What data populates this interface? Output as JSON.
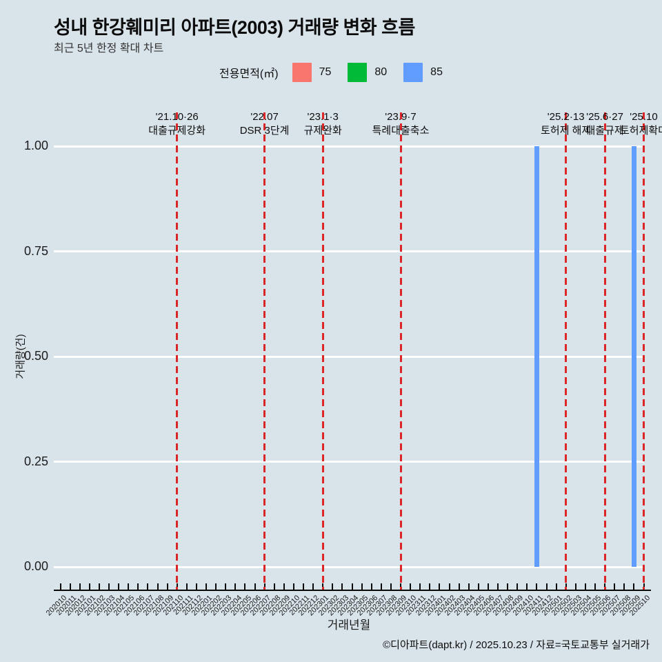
{
  "title": "성내 한강훼미리 아파트(2003) 거래량 변화 흐름",
  "subtitle": "최근 5년 한정 확대 차트",
  "legend": {
    "label": "전용면적(㎡)",
    "items": [
      {
        "label": "75",
        "color": "#F8766D"
      },
      {
        "label": "80",
        "color": "#00BA38"
      },
      {
        "label": "85",
        "color": "#619CFF"
      }
    ]
  },
  "footer": "©디아파트(dapt.kr) / 2025.10.23 / 자료=국토교통부 실거래가",
  "colors": {
    "background": "#d9e3ea",
    "gridline": "#ffffff",
    "event_line": "#dc2626",
    "axis": "#0a0a0a"
  },
  "chart_data": {
    "type": "bar",
    "title": "성내 한강훼미리 아파트(2003) 거래량 변화 흐름",
    "subtitle": "최근 5년 한정 확대 차트",
    "xlabel": "거래년월",
    "ylabel": "거래량(건)",
    "ylim": [
      0.0,
      1.0
    ],
    "grid": true,
    "legend_position": "top",
    "yticks": [
      {
        "label": "1.00",
        "value": 1.0
      },
      {
        "label": "0.75",
        "value": 0.75
      },
      {
        "label": "0.50",
        "value": 0.5
      },
      {
        "label": "0.25",
        "value": 0.25
      },
      {
        "label": "0.00",
        "value": 0.0
      }
    ],
    "categories": [
      "202010",
      "202011",
      "202012",
      "202101",
      "202102",
      "202103",
      "202104",
      "202105",
      "202106",
      "202107",
      "202108",
      "202109",
      "202110",
      "202111",
      "202112",
      "202201",
      "202202",
      "202203",
      "202204",
      "202205",
      "202206",
      "202207",
      "202208",
      "202209",
      "202210",
      "202211",
      "202212",
      "202301",
      "202302",
      "202303",
      "202304",
      "202305",
      "202306",
      "202307",
      "202308",
      "202309",
      "202310",
      "202311",
      "202312",
      "202401",
      "202402",
      "202403",
      "202404",
      "202405",
      "202406",
      "202407",
      "202408",
      "202409",
      "202410",
      "202411",
      "202412",
      "202501",
      "202502",
      "202503",
      "202504",
      "202505",
      "202506",
      "202507",
      "202508",
      "202509",
      "202510"
    ],
    "series": [
      {
        "name": "75",
        "color": "#F8766D",
        "values": [
          0,
          0,
          0,
          0,
          0,
          0,
          0,
          0,
          0,
          0,
          0,
          0,
          0,
          0,
          0,
          0,
          0,
          0,
          0,
          0,
          0,
          0,
          0,
          0,
          0,
          0,
          0,
          0,
          0,
          0,
          0,
          0,
          0,
          0,
          0,
          0,
          0,
          0,
          0,
          0,
          0,
          0,
          0,
          0,
          0,
          0,
          0,
          0,
          0,
          0,
          0,
          0,
          0,
          0,
          0,
          0,
          0,
          0,
          0,
          0,
          0
        ]
      },
      {
        "name": "80",
        "color": "#00BA38",
        "values": [
          0,
          0,
          0,
          0,
          0,
          0,
          0,
          0,
          0,
          0,
          0,
          0,
          0,
          0,
          0,
          0,
          0,
          0,
          0,
          0,
          0,
          0,
          0,
          0,
          0,
          0,
          0,
          0,
          0,
          0,
          0,
          0,
          0,
          0,
          0,
          0,
          0,
          0,
          0,
          0,
          0,
          0,
          0,
          0,
          0,
          0,
          0,
          0,
          0,
          0,
          0,
          0,
          0,
          0,
          0,
          0,
          0,
          0,
          0,
          0,
          0
        ]
      },
      {
        "name": "85",
        "color": "#619CFF",
        "values": [
          0,
          0,
          0,
          0,
          0,
          0,
          0,
          0,
          0,
          0,
          0,
          0,
          0,
          0,
          0,
          0,
          0,
          0,
          0,
          0,
          0,
          0,
          0,
          0,
          0,
          0,
          0,
          0,
          0,
          0,
          0,
          0,
          0,
          0,
          0,
          0,
          0,
          0,
          0,
          0,
          0,
          0,
          0,
          0,
          0,
          0,
          0,
          0,
          0,
          1,
          0,
          0,
          0,
          0,
          0,
          0,
          0,
          0,
          0,
          1,
          0
        ]
      }
    ],
    "annotations": [
      {
        "date": "'21.10·26",
        "label": "대출규제강화",
        "month": "202110"
      },
      {
        "date": "'22.07",
        "label": "DSR 3단계",
        "month": "202207"
      },
      {
        "date": "'23.1·3",
        "label": "규제완화",
        "month": "202301"
      },
      {
        "date": "'23.9·7",
        "label": "특례대출축소",
        "month": "202309"
      },
      {
        "date": "'25.2·13",
        "label": "토허제 해제",
        "month": "202502"
      },
      {
        "date": "'25.6·27",
        "label": "대출규제",
        "month": "202506"
      },
      {
        "date": "'25.10",
        "label": "토허제확대",
        "month": "202510"
      }
    ]
  }
}
